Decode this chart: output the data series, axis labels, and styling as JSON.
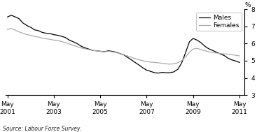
{
  "ylabel": "%",
  "source_text": "Source: Labour Force Survey.",
  "xlim_start": 2001.25,
  "xlim_end": 2011.55,
  "ylim": [
    3,
    8
  ],
  "yticks": [
    3,
    4,
    5,
    6,
    7,
    8
  ],
  "xtick_positions": [
    2001.33,
    2003.33,
    2005.33,
    2007.33,
    2009.33,
    2011.33
  ],
  "xtick_labels": [
    "May\n2001",
    "May\n2003",
    "May\n2005",
    "May\n2007",
    "May\n2009",
    "May\n2011"
  ],
  "legend_entries": [
    "Males",
    "Females"
  ],
  "males_color": "#000000",
  "females_color": "#aaaaaa",
  "background_color": "#ffffff",
  "males_data": [
    [
      2001.33,
      7.55
    ],
    [
      2001.5,
      7.65
    ],
    [
      2001.67,
      7.55
    ],
    [
      2001.83,
      7.45
    ],
    [
      2002.0,
      7.2
    ],
    [
      2002.17,
      7.05
    ],
    [
      2002.33,
      6.95
    ],
    [
      2002.5,
      6.8
    ],
    [
      2002.67,
      6.75
    ],
    [
      2002.83,
      6.65
    ],
    [
      2003.0,
      6.6
    ],
    [
      2003.17,
      6.58
    ],
    [
      2003.33,
      6.52
    ],
    [
      2003.5,
      6.48
    ],
    [
      2003.67,
      6.42
    ],
    [
      2003.83,
      6.35
    ],
    [
      2004.0,
      6.2
    ],
    [
      2004.17,
      6.1
    ],
    [
      2004.33,
      6.0
    ],
    [
      2004.5,
      5.85
    ],
    [
      2004.67,
      5.75
    ],
    [
      2004.83,
      5.68
    ],
    [
      2005.0,
      5.6
    ],
    [
      2005.17,
      5.58
    ],
    [
      2005.33,
      5.55
    ],
    [
      2005.5,
      5.52
    ],
    [
      2005.67,
      5.58
    ],
    [
      2005.83,
      5.55
    ],
    [
      2006.0,
      5.5
    ],
    [
      2006.17,
      5.42
    ],
    [
      2006.33,
      5.35
    ],
    [
      2006.5,
      5.2
    ],
    [
      2006.67,
      5.05
    ],
    [
      2006.83,
      4.9
    ],
    [
      2007.0,
      4.75
    ],
    [
      2007.17,
      4.58
    ],
    [
      2007.33,
      4.45
    ],
    [
      2007.5,
      4.38
    ],
    [
      2007.67,
      4.3
    ],
    [
      2007.83,
      4.28
    ],
    [
      2008.0,
      4.32
    ],
    [
      2008.17,
      4.3
    ],
    [
      2008.33,
      4.3
    ],
    [
      2008.5,
      4.35
    ],
    [
      2008.67,
      4.5
    ],
    [
      2008.83,
      4.85
    ],
    [
      2009.0,
      5.45
    ],
    [
      2009.17,
      6.1
    ],
    [
      2009.33,
      6.3
    ],
    [
      2009.5,
      6.2
    ],
    [
      2009.67,
      6.05
    ],
    [
      2009.83,
      5.85
    ],
    [
      2010.0,
      5.7
    ],
    [
      2010.17,
      5.6
    ],
    [
      2010.33,
      5.5
    ],
    [
      2010.5,
      5.4
    ],
    [
      2010.67,
      5.3
    ],
    [
      2010.83,
      5.15
    ],
    [
      2011.0,
      5.05
    ],
    [
      2011.17,
      4.98
    ],
    [
      2011.33,
      4.9
    ]
  ],
  "females_data": [
    [
      2001.33,
      6.82
    ],
    [
      2001.5,
      6.88
    ],
    [
      2001.67,
      6.78
    ],
    [
      2001.83,
      6.68
    ],
    [
      2002.0,
      6.6
    ],
    [
      2002.17,
      6.52
    ],
    [
      2002.33,
      6.48
    ],
    [
      2002.5,
      6.42
    ],
    [
      2002.67,
      6.38
    ],
    [
      2002.83,
      6.32
    ],
    [
      2003.0,
      6.28
    ],
    [
      2003.17,
      6.25
    ],
    [
      2003.33,
      6.2
    ],
    [
      2003.5,
      6.18
    ],
    [
      2003.67,
      6.12
    ],
    [
      2003.83,
      6.05
    ],
    [
      2004.0,
      5.98
    ],
    [
      2004.17,
      5.9
    ],
    [
      2004.33,
      5.82
    ],
    [
      2004.5,
      5.75
    ],
    [
      2004.67,
      5.7
    ],
    [
      2004.83,
      5.65
    ],
    [
      2005.0,
      5.6
    ],
    [
      2005.17,
      5.58
    ],
    [
      2005.33,
      5.55
    ],
    [
      2005.5,
      5.52
    ],
    [
      2005.67,
      5.55
    ],
    [
      2005.83,
      5.52
    ],
    [
      2006.0,
      5.48
    ],
    [
      2006.17,
      5.42
    ],
    [
      2006.33,
      5.35
    ],
    [
      2006.5,
      5.28
    ],
    [
      2006.67,
      5.2
    ],
    [
      2006.83,
      5.12
    ],
    [
      2007.0,
      5.05
    ],
    [
      2007.17,
      5.0
    ],
    [
      2007.33,
      4.95
    ],
    [
      2007.5,
      4.92
    ],
    [
      2007.67,
      4.9
    ],
    [
      2007.83,
      4.88
    ],
    [
      2008.0,
      4.85
    ],
    [
      2008.17,
      4.82
    ],
    [
      2008.33,
      4.8
    ],
    [
      2008.5,
      4.82
    ],
    [
      2008.67,
      4.88
    ],
    [
      2008.83,
      5.0
    ],
    [
      2009.0,
      5.2
    ],
    [
      2009.17,
      5.5
    ],
    [
      2009.33,
      5.68
    ],
    [
      2009.5,
      5.72
    ],
    [
      2009.67,
      5.65
    ],
    [
      2009.83,
      5.58
    ],
    [
      2010.0,
      5.52
    ],
    [
      2010.17,
      5.48
    ],
    [
      2010.33,
      5.45
    ],
    [
      2010.5,
      5.42
    ],
    [
      2010.67,
      5.4
    ],
    [
      2010.83,
      5.38
    ],
    [
      2011.0,
      5.35
    ],
    [
      2011.17,
      5.32
    ],
    [
      2011.33,
      5.28
    ]
  ]
}
